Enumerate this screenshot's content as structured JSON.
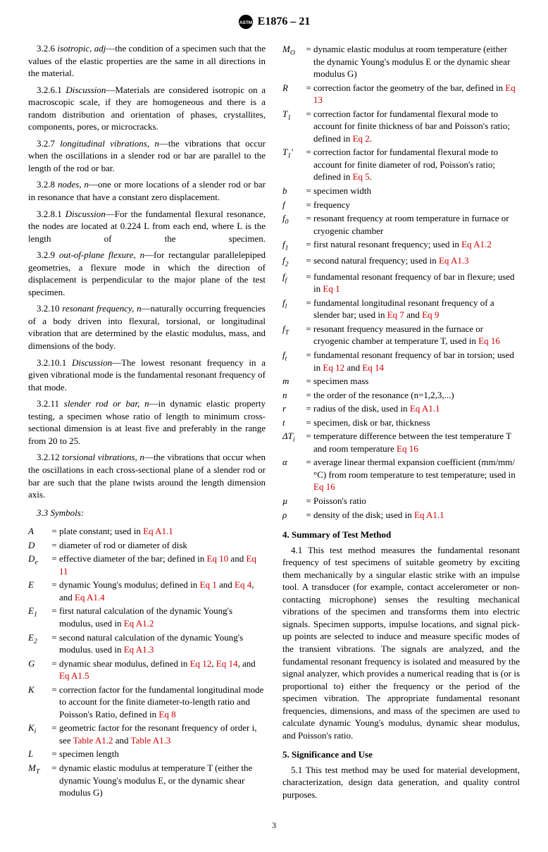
{
  "header": {
    "designation": "E1876 – 21"
  },
  "colors": {
    "link_color": "#cc0000",
    "text_color": "#000000",
    "background": "#ffffff"
  },
  "left_col": {
    "definitions": [
      {
        "num": "3.2.6",
        "term": "isotropic, adj",
        "text": "—the condition of a specimen such that the values of the elastic properties are the same in all directions in the material."
      },
      {
        "num": "3.2.6.1",
        "term": "Discussion",
        "text": "—Materials are considered isotropic on a macroscopic scale, if they are homogeneous and there is a random distribution and orientation of phases, crystallites, components, pores, or microcracks."
      },
      {
        "num": "3.2.7",
        "term": "longitudinal vibrations, n",
        "text": "—the vibrations that occur when the oscillations in a slender rod or bar are parallel to the length of the rod or bar."
      },
      {
        "num": "3.2.8",
        "term": "nodes, n",
        "text": "—one or more locations of a slender rod or bar in resonance that have a constant zero displacement."
      },
      {
        "num": "3.2.8.1",
        "term": "Discussion",
        "text": "—For the fundamental flexural resonance, the nodes are located at 0.224 L from each end, where L is the length of the specimen.",
        "justify_full": true
      },
      {
        "num": "3.2.9",
        "term": "out-of-plane flexure, n",
        "text": "—for rectangular parallelepiped geometries, a flexure mode in which the direction of displacement is perpendicular to the major plane of the test specimen."
      },
      {
        "num": "3.2.10",
        "term": "resonant frequency, n",
        "text": "—naturally occurring frequencies of a body driven into flexural, torsional, or longitudinal vibration that are determined by the elastic modulus, mass, and dimensions of the body."
      },
      {
        "num": "3.2.10.1",
        "term": "Discussion",
        "text": "—The lowest resonant frequency in a given vibrational mode is the fundamental resonant frequency of that mode."
      },
      {
        "num": "3.2.11",
        "term": "slender rod or bar, n",
        "text": "—in dynamic elastic property testing, a specimen whose ratio of length to minimum cross-sectional dimension is at least five and preferably in the range from 20 to 25."
      },
      {
        "num": "3.2.12",
        "term": "torsional vibrations, n",
        "text": "—the vibrations that occur when the oscillations in each cross-sectional plane of a slender rod or bar are such that the plane twists around the length dimension axis."
      }
    ],
    "symbols_label": "3.3 Symbols:",
    "symbols": [
      {
        "sym": "A",
        "def": "plate constant; used in ",
        "links": [
          "Eq A1.1"
        ]
      },
      {
        "sym": "D",
        "def": "diameter of rod or diameter of disk"
      },
      {
        "sym": "D",
        "sub": "e",
        "def": "effective diameter of the bar; defined in ",
        "links": [
          "Eq 10"
        ],
        "mid": " and ",
        "links2": [
          "Eq 11"
        ]
      },
      {
        "sym": "E",
        "def": "dynamic Young's modulus; defined in ",
        "links": [
          "Eq 1"
        ],
        "mid": " and ",
        "links2": [
          "Eq 4"
        ],
        "tail": ", and ",
        "links3": [
          "Eq A1.4"
        ]
      },
      {
        "sym": "E",
        "sub": "1",
        "def": "first natural calculation of the dynamic Young's modulus, used in ",
        "links": [
          "Eq A1.2"
        ]
      },
      {
        "sym": "E",
        "sub": "2",
        "def": "second natural calculation of the dynamic Young's modulus. used in ",
        "links": [
          "Eq A1.3"
        ]
      },
      {
        "sym": "G",
        "def": "dynamic shear modulus, defined in ",
        "links": [
          "Eq 12"
        ],
        "mid": ", ",
        "links2": [
          "Eq 14"
        ],
        "tail": ", and ",
        "links3": [
          "Eq A1.5"
        ]
      },
      {
        "sym": "K",
        "def": "correction factor for the fundamental longitudinal mode to account for the finite diameter-to-length ratio and Poisson's Ratio, defined in ",
        "links": [
          "Eq 8"
        ]
      },
      {
        "sym": "K",
        "sub": "i",
        "def": "geometric factor for the resonant frequency of order i, see ",
        "links": [
          "Table A1.2"
        ],
        "mid": " and ",
        "links2": [
          "Table A1.3"
        ]
      },
      {
        "sym": "L",
        "def": "specimen length"
      },
      {
        "sym": "M",
        "sub": "T",
        "def": "dynamic elastic modulus at temperature T (either the dynamic Young's modulus E, or the dynamic shear modulus G)"
      }
    ]
  },
  "right_col": {
    "symbols": [
      {
        "sym": "M",
        "sub": "O",
        "def": "dynamic elastic modulus at room temperature (either the dynamic Young's modulus E or the dynamic shear modulus G)"
      },
      {
        "sym": "R",
        "def": "correction factor the geometry of the bar, defined in ",
        "links": [
          "Eq 13"
        ]
      },
      {
        "sym": "T",
        "sub": "1",
        "def": "correction factor for fundamental flexural mode to account for finite thickness of bar and Poisson's ratio; defined in ",
        "links": [
          "Eq 2"
        ],
        "tail": "."
      },
      {
        "sym": "T",
        "sub": "1",
        "prime": true,
        "def": "correction factor for fundamental flexural mode to account for finite diameter of rod, Poisson's ratio; defined in ",
        "links": [
          "Eq 5"
        ],
        "tail": "."
      },
      {
        "sym": "b",
        "def": "specimen width"
      },
      {
        "sym": "f",
        "def": "frequency"
      },
      {
        "sym": "f",
        "sub": "0",
        "def": "resonant frequency at room temperature in furnace or cryogenic chamber"
      },
      {
        "sym": "f",
        "sub": "1",
        "def": "first natural resonant frequency; used in ",
        "links": [
          "Eq A1.2"
        ]
      },
      {
        "sym": "f",
        "sub": "2",
        "def": "second natural frequency; used in ",
        "links": [
          "Eq A1.3"
        ]
      },
      {
        "sym": "f",
        "sub": "f",
        "def": "fundamental resonant frequency of bar in flexure; used in ",
        "links": [
          "Eq 1"
        ]
      },
      {
        "sym": "f",
        "sub": "l",
        "def": "fundamental longitudinal resonant frequency of a slender bar; used in ",
        "links": [
          "Eq 7"
        ],
        "mid": " and ",
        "links2": [
          "Eq 9"
        ]
      },
      {
        "sym": "f",
        "sub": "T",
        "def": "resonant frequency measured in the furnace or cryogenic chamber at temperature T, used in ",
        "links": [
          "Eq 16"
        ]
      },
      {
        "sym": "f",
        "sub": "t",
        "def": "fundamental resonant frequency of bar in torsion; used in ",
        "links": [
          "Eq 12"
        ],
        "mid": " and ",
        "links2": [
          "Eq 14"
        ]
      },
      {
        "sym": "m",
        "def": "specimen mass"
      },
      {
        "sym": "n",
        "def": "the order of the resonance (n=1,2,3,...)"
      },
      {
        "sym": "r",
        "def": "radius of the disk, used in ",
        "links": [
          "Eq A1.1"
        ]
      },
      {
        "sym": "t",
        "def": "specimen, disk or bar, thickness"
      },
      {
        "sym": "ΔT",
        "sub": "i",
        "def": "temperature difference between the test temperature T and room temperature ",
        "links": [
          "Eq 16"
        ]
      },
      {
        "sym": "α",
        "def": "average linear thermal expansion coefficient (mm/mm/°C) from room temperature to test temperature; used in ",
        "links": [
          "Eq 16"
        ]
      },
      {
        "sym": "µ",
        "def": "Poisson's ratio"
      },
      {
        "sym": "ρ",
        "def": "density of the disk; used in ",
        "links": [
          "Eq A1.1"
        ]
      }
    ],
    "section4": {
      "title": "4. Summary of Test Method",
      "para_num": "4.1",
      "para": "This test method measures the fundamental resonant frequency of test specimens of suitable geometry by exciting them mechanically by a singular elastic strike with an impulse tool. A transducer (for example, contact accelerometer or non-contacting microphone) senses the resulting mechanical vibrations of the specimen and transforms them into electric signals. Specimen supports, impulse locations, and signal pick-up points are selected to induce and measure specific modes of the transient vibrations. The signals are analyzed, and the fundamental resonant frequency is isolated and measured by the signal analyzer, which provides a numerical reading that is (or is proportional to) either the frequency or the period of the specimen vibration. The appropriate fundamental resonant frequencies, dimensions, and mass of the specimen are used to calculate dynamic Young's modulus, dynamic shear modulus, and Poisson's ratio."
    },
    "section5": {
      "title": "5. Significance and Use",
      "para_num": "5.1",
      "para": "This test method may be used for material development, characterization, design data generation, and quality control purposes."
    }
  },
  "page_number": "3"
}
